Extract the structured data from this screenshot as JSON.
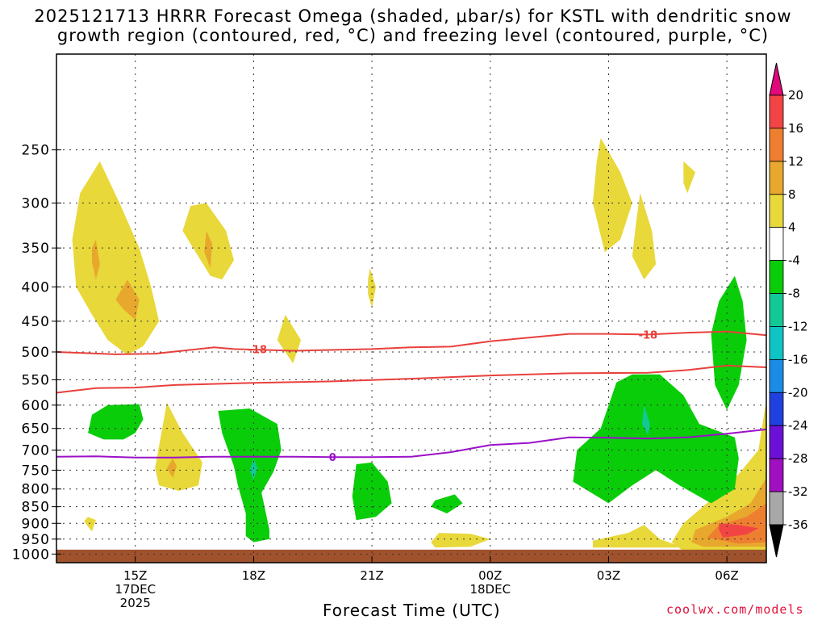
{
  "chart_data": {
    "type": "heatmap",
    "title_line1": "2025121713 HRRR Forecast Omega (shaded, μbar/s) for KSTL with dendritic snow",
    "title_line2": "growth region (contoured, red, °C) and freezing level (contoured, purple, °C)",
    "xlabel": "Forecast Time (UTC)",
    "ylabel": "",
    "credit": "coolwx.com/models",
    "y_ticks": [
      "250",
      "300",
      "350",
      "400",
      "450",
      "500",
      "550",
      "600",
      "650",
      "700",
      "750",
      "800",
      "850",
      "900",
      "950",
      "1000"
    ],
    "y_values": [
      250,
      300,
      350,
      400,
      450,
      500,
      550,
      600,
      650,
      700,
      750,
      800,
      850,
      900,
      950,
      1000
    ],
    "ylim": [
      180,
      1030
    ],
    "x_hours": [
      15,
      18,
      21,
      24,
      27,
      30
    ],
    "x_ticks": [
      {
        "line1": "15Z",
        "line2": "17DEC",
        "line3": "2025"
      },
      {
        "line1": "18Z",
        "line2": "",
        "line3": ""
      },
      {
        "line1": "21Z",
        "line2": "",
        "line3": ""
      },
      {
        "line1": "00Z",
        "line2": "18DEC",
        "line3": ""
      },
      {
        "line1": "03Z",
        "line2": "",
        "line3": ""
      },
      {
        "line1": "06Z",
        "line2": "",
        "line3": ""
      }
    ],
    "xlim": [
      13.0,
      31.0
    ],
    "contour_labels": [
      {
        "text": "-18",
        "hour": 18.1,
        "p": 495,
        "color": "#e8403c"
      },
      {
        "text": "-18",
        "hour": 28.0,
        "p": 471,
        "color": "#e8403c"
      },
      {
        "text": "0",
        "hour": 20.0,
        "p": 717,
        "color": "#9b10c8"
      }
    ],
    "contours": [
      {
        "name": "dgz-top-18C",
        "color": "#e8403c",
        "points": [
          [
            13,
            500
          ],
          [
            14.5,
            504
          ],
          [
            15.5,
            503
          ],
          [
            17,
            492
          ],
          [
            17.5,
            495
          ],
          [
            19,
            498
          ],
          [
            21,
            495
          ],
          [
            22,
            492
          ],
          [
            23,
            491
          ],
          [
            24,
            482
          ],
          [
            26,
            470
          ],
          [
            27,
            470
          ],
          [
            28,
            471
          ],
          [
            29,
            468
          ],
          [
            30,
            466
          ],
          [
            31,
            472
          ]
        ]
      },
      {
        "name": "dgz-bottom-12C",
        "color": "#e8403c",
        "points": [
          [
            13,
            575
          ],
          [
            14,
            566
          ],
          [
            15,
            565
          ],
          [
            16,
            560
          ],
          [
            18,
            556
          ],
          [
            20,
            553
          ],
          [
            22,
            548
          ],
          [
            24,
            542
          ],
          [
            26,
            538
          ],
          [
            28,
            537
          ],
          [
            29,
            532
          ],
          [
            30,
            524
          ],
          [
            31,
            527
          ]
        ]
      },
      {
        "name": "freezing-level-0C",
        "color": "#9b10c8",
        "points": [
          [
            13,
            716
          ],
          [
            14,
            715
          ],
          [
            15,
            718
          ],
          [
            16,
            718
          ],
          [
            17,
            716
          ],
          [
            19,
            716
          ],
          [
            20,
            717
          ],
          [
            21,
            717
          ],
          [
            22,
            716
          ],
          [
            23,
            705
          ],
          [
            24,
            688
          ],
          [
            25,
            683
          ],
          [
            26,
            670
          ],
          [
            27,
            671
          ],
          [
            28,
            673
          ],
          [
            29,
            670
          ],
          [
            30,
            662
          ],
          [
            31,
            652
          ]
        ]
      }
    ],
    "omega_regions": [
      {
        "color": "#e8d83a",
        "points": [
          [
            14.1,
            260
          ],
          [
            14.6,
            300
          ],
          [
            15.1,
            350
          ],
          [
            15.4,
            400
          ],
          [
            15.6,
            450
          ],
          [
            15.2,
            490
          ],
          [
            14.8,
            505
          ],
          [
            14.3,
            480
          ],
          [
            13.9,
            440
          ],
          [
            13.5,
            400
          ],
          [
            13.4,
            340
          ],
          [
            13.6,
            290
          ]
        ]
      },
      {
        "color": "#e8a82e",
        "points": [
          [
            14.0,
            340
          ],
          [
            14.1,
            370
          ],
          [
            14.0,
            390
          ],
          [
            13.9,
            368
          ],
          [
            13.9,
            350
          ]
        ]
      },
      {
        "color": "#e8a82e",
        "points": [
          [
            14.8,
            390
          ],
          [
            15.1,
            418
          ],
          [
            15.0,
            448
          ],
          [
            14.7,
            432
          ],
          [
            14.5,
            418
          ]
        ]
      },
      {
        "color": "#e8d83a",
        "points": [
          [
            16.4,
            303
          ],
          [
            16.8,
            300
          ],
          [
            17.3,
            330
          ],
          [
            17.5,
            365
          ],
          [
            17.2,
            390
          ],
          [
            16.9,
            385
          ],
          [
            16.4,
            345
          ],
          [
            16.2,
            330
          ]
        ]
      },
      {
        "color": "#e8a82e",
        "points": [
          [
            16.8,
            330
          ],
          [
            16.95,
            345
          ],
          [
            16.9,
            375
          ],
          [
            16.75,
            355
          ]
        ]
      },
      {
        "color": "#e8d83a",
        "points": [
          [
            18.8,
            440
          ],
          [
            19.2,
            480
          ],
          [
            19.0,
            520
          ],
          [
            18.8,
            500
          ],
          [
            18.6,
            480
          ]
        ]
      },
      {
        "color": "#e8d83a",
        "points": [
          [
            20.95,
            375
          ],
          [
            21.1,
            400
          ],
          [
            21.0,
            430
          ],
          [
            20.9,
            410
          ],
          [
            20.9,
            390
          ]
        ]
      },
      {
        "color": "#e8d83a",
        "points": [
          [
            15.8,
            595
          ],
          [
            16.2,
            660
          ],
          [
            16.7,
            730
          ],
          [
            16.6,
            790
          ],
          [
            16.1,
            805
          ],
          [
            15.6,
            790
          ],
          [
            15.5,
            745
          ]
        ]
      },
      {
        "color": "#e8a82e",
        "points": [
          [
            15.95,
            720
          ],
          [
            16.05,
            740
          ],
          [
            15.95,
            770
          ],
          [
            15.8,
            745
          ]
        ]
      },
      {
        "color": "#e8d83a",
        "points": [
          [
            13.8,
            880
          ],
          [
            14.0,
            890
          ],
          [
            13.9,
            925
          ],
          [
            13.8,
            910
          ],
          [
            13.7,
            893
          ]
        ]
      },
      {
        "color": "#e8d83a",
        "points": [
          [
            26.8,
            240
          ],
          [
            27.3,
            270
          ],
          [
            27.6,
            300
          ],
          [
            27.3,
            340
          ],
          [
            26.9,
            355
          ],
          [
            26.6,
            300
          ],
          [
            26.7,
            260
          ]
        ]
      },
      {
        "color": "#e8d83a",
        "points": [
          [
            28.9,
            260
          ],
          [
            29.2,
            270
          ],
          [
            29.0,
            290
          ],
          [
            28.9,
            280
          ]
        ]
      },
      {
        "color": "#e8d83a",
        "points": [
          [
            27.8,
            290
          ],
          [
            28.1,
            330
          ],
          [
            28.2,
            370
          ],
          [
            27.9,
            390
          ],
          [
            27.6,
            360
          ],
          [
            27.7,
            320
          ]
        ]
      },
      {
        "color": "#e8d83a",
        "points": [
          [
            22.7,
            930
          ],
          [
            23.5,
            933
          ],
          [
            24.0,
            950
          ],
          [
            23.5,
            975
          ],
          [
            22.6,
            978
          ],
          [
            22.5,
            960
          ]
        ]
      },
      {
        "color": "#e8d83a",
        "points": [
          [
            26.6,
            955
          ],
          [
            27.5,
            930
          ],
          [
            27.9,
            905
          ],
          [
            28.3,
            950
          ],
          [
            28.9,
            978
          ],
          [
            26.6,
            978
          ]
        ]
      },
      {
        "color": "#e8d83a",
        "points": [
          [
            31.0,
            590
          ],
          [
            30.8,
            700
          ],
          [
            30.3,
            760
          ],
          [
            29.6,
            830
          ],
          [
            28.9,
            900
          ],
          [
            28.6,
            960
          ],
          [
            28.9,
            990
          ],
          [
            31.0,
            990
          ]
        ]
      },
      {
        "color": "#e8a82e",
        "points": [
          [
            31.0,
            770
          ],
          [
            30.6,
            840
          ],
          [
            30.0,
            880
          ],
          [
            29.2,
            920
          ],
          [
            29.1,
            960
          ],
          [
            29.4,
            975
          ],
          [
            31.0,
            975
          ]
        ]
      },
      {
        "color": "#ee7f30",
        "points": [
          [
            31.0,
            840
          ],
          [
            30.5,
            880
          ],
          [
            29.8,
            905
          ],
          [
            29.5,
            945
          ],
          [
            30.3,
            965
          ],
          [
            31.0,
            960
          ]
        ]
      },
      {
        "color": "#f24444",
        "points": [
          [
            29.8,
            900
          ],
          [
            30.3,
            905
          ],
          [
            30.8,
            915
          ],
          [
            30.5,
            935
          ],
          [
            29.9,
            945
          ],
          [
            29.8,
            920
          ]
        ]
      },
      {
        "color": "#0acd0a",
        "points": [
          [
            14.3,
            600
          ],
          [
            15.1,
            598
          ],
          [
            15.2,
            630
          ],
          [
            15.0,
            660
          ],
          [
            14.7,
            675
          ],
          [
            14.2,
            675
          ],
          [
            13.8,
            660
          ],
          [
            13.9,
            620
          ]
        ]
      },
      {
        "color": "#0acd0a",
        "points": [
          [
            17.1,
            612
          ],
          [
            17.9,
            607
          ],
          [
            18.6,
            640
          ],
          [
            18.7,
            700
          ],
          [
            18.5,
            755
          ],
          [
            18.2,
            810
          ],
          [
            18.4,
            920
          ],
          [
            18.4,
            950
          ],
          [
            18.0,
            960
          ],
          [
            17.8,
            940
          ],
          [
            17.8,
            870
          ],
          [
            17.6,
            790
          ],
          [
            17.5,
            740
          ],
          [
            17.2,
            660
          ]
        ]
      },
      {
        "color": "#12c894",
        "points": [
          [
            18.0,
            720
          ],
          [
            18.1,
            745
          ],
          [
            18.0,
            775
          ],
          [
            17.9,
            750
          ]
        ]
      },
      {
        "color": "#0acd0a",
        "points": [
          [
            20.6,
            735
          ],
          [
            21.0,
            730
          ],
          [
            21.4,
            780
          ],
          [
            21.5,
            840
          ],
          [
            21.1,
            880
          ],
          [
            20.6,
            890
          ],
          [
            20.5,
            820
          ]
        ]
      },
      {
        "color": "#0acd0a",
        "points": [
          [
            22.6,
            832
          ],
          [
            23.1,
            815
          ],
          [
            23.3,
            840
          ],
          [
            22.9,
            870
          ],
          [
            22.5,
            850
          ]
        ]
      },
      {
        "color": "#0acd0a",
        "points": [
          [
            27.2,
            555
          ],
          [
            27.6,
            540
          ],
          [
            28.3,
            540
          ],
          [
            28.9,
            580
          ],
          [
            29.3,
            640
          ],
          [
            30.2,
            670
          ],
          [
            30.3,
            720
          ],
          [
            30.2,
            800
          ],
          [
            29.6,
            840
          ],
          [
            28.8,
            790
          ],
          [
            28.2,
            750
          ],
          [
            27.6,
            790
          ],
          [
            27.0,
            840
          ],
          [
            26.1,
            780
          ],
          [
            26.2,
            700
          ],
          [
            26.8,
            650
          ]
        ]
      },
      {
        "color": "#12c894",
        "points": [
          [
            27.9,
            600
          ],
          [
            28.05,
            640
          ],
          [
            28.0,
            665
          ],
          [
            27.85,
            640
          ]
        ]
      },
      {
        "color": "#0acd0a",
        "points": [
          [
            30.2,
            385
          ],
          [
            30.4,
            420
          ],
          [
            30.5,
            480
          ],
          [
            30.3,
            560
          ],
          [
            30.0,
            610
          ],
          [
            29.7,
            560
          ],
          [
            29.6,
            470
          ],
          [
            29.8,
            420
          ]
        ]
      }
    ],
    "colorbar": {
      "labels": [
        "20",
        "16",
        "12",
        "8",
        "4",
        "-4",
        "-8",
        "-12",
        "-16",
        "-20",
        "-24",
        "-28",
        "-32",
        "-36"
      ],
      "colors": [
        "#e0087a",
        "#f24444",
        "#ee7f30",
        "#e8a82e",
        "#e8d83a",
        "#ffffff",
        "#0acd0a",
        "#12c894",
        "#0ec4c4",
        "#1a8ce6",
        "#2040e0",
        "#6a10d8",
        "#a010c0",
        "#a8a8a8",
        "#000000"
      ]
    },
    "ground_color": "#a0522d",
    "ground_top_p": 985
  }
}
